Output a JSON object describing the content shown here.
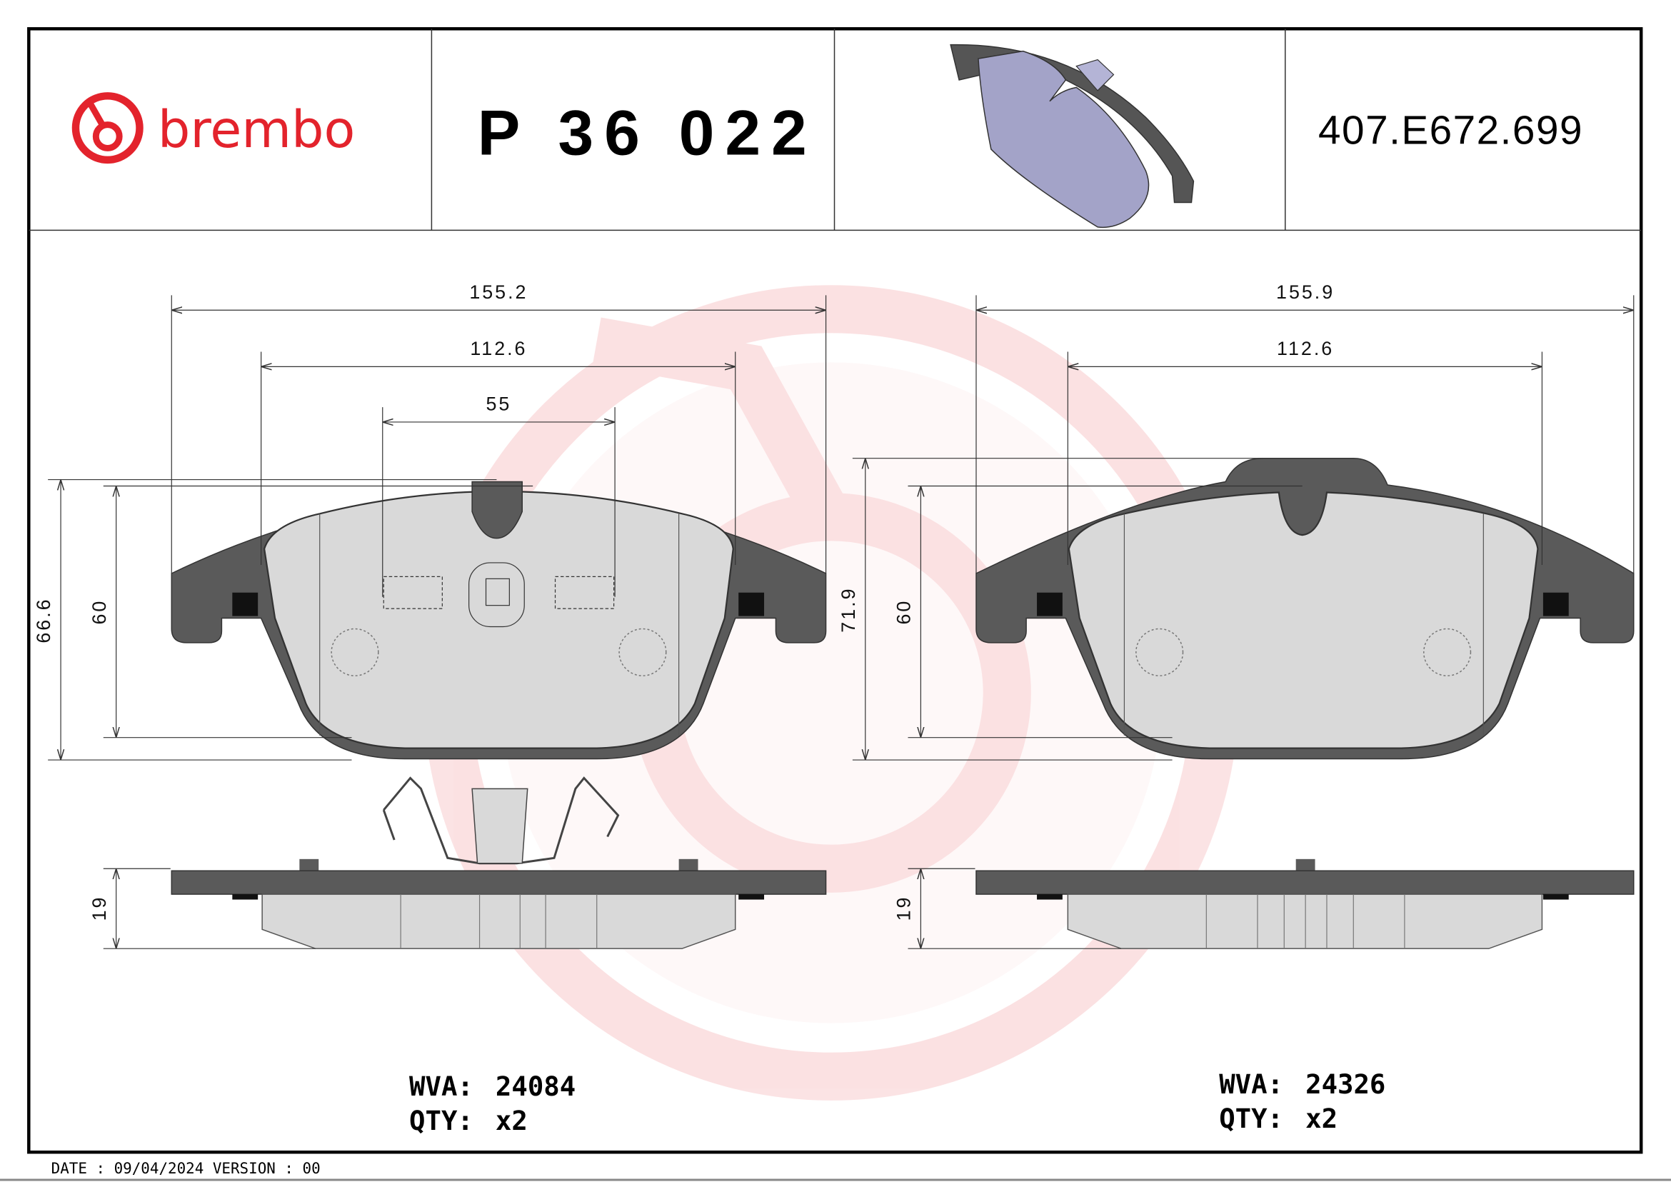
{
  "header": {
    "brand": "brembo",
    "brand_color": "#e3232c",
    "product_code": "P 36 022",
    "part_number": "407.E672.699",
    "render_colors": {
      "friction": "#a3a3c8",
      "backing": "#555555"
    }
  },
  "left_pad": {
    "width_overall": "155.2",
    "width_inner": "112.6",
    "clip_width": "55",
    "height_overall": "66.6",
    "height_friction": "60",
    "thickness": "19",
    "wva_label": "WVA:",
    "wva": "24084",
    "qty_label": "QTY:",
    "qty": "x2"
  },
  "right_pad": {
    "width_overall": "155.9",
    "width_inner": "112.6",
    "height_overall": "71.9",
    "height_friction": "60",
    "thickness": "19",
    "wva_label": "WVA:",
    "wva": "24326",
    "qty_label": "QTY:",
    "qty": "x2"
  },
  "footer": {
    "text": "DATE : 09/04/2024 VERSION : 00"
  }
}
